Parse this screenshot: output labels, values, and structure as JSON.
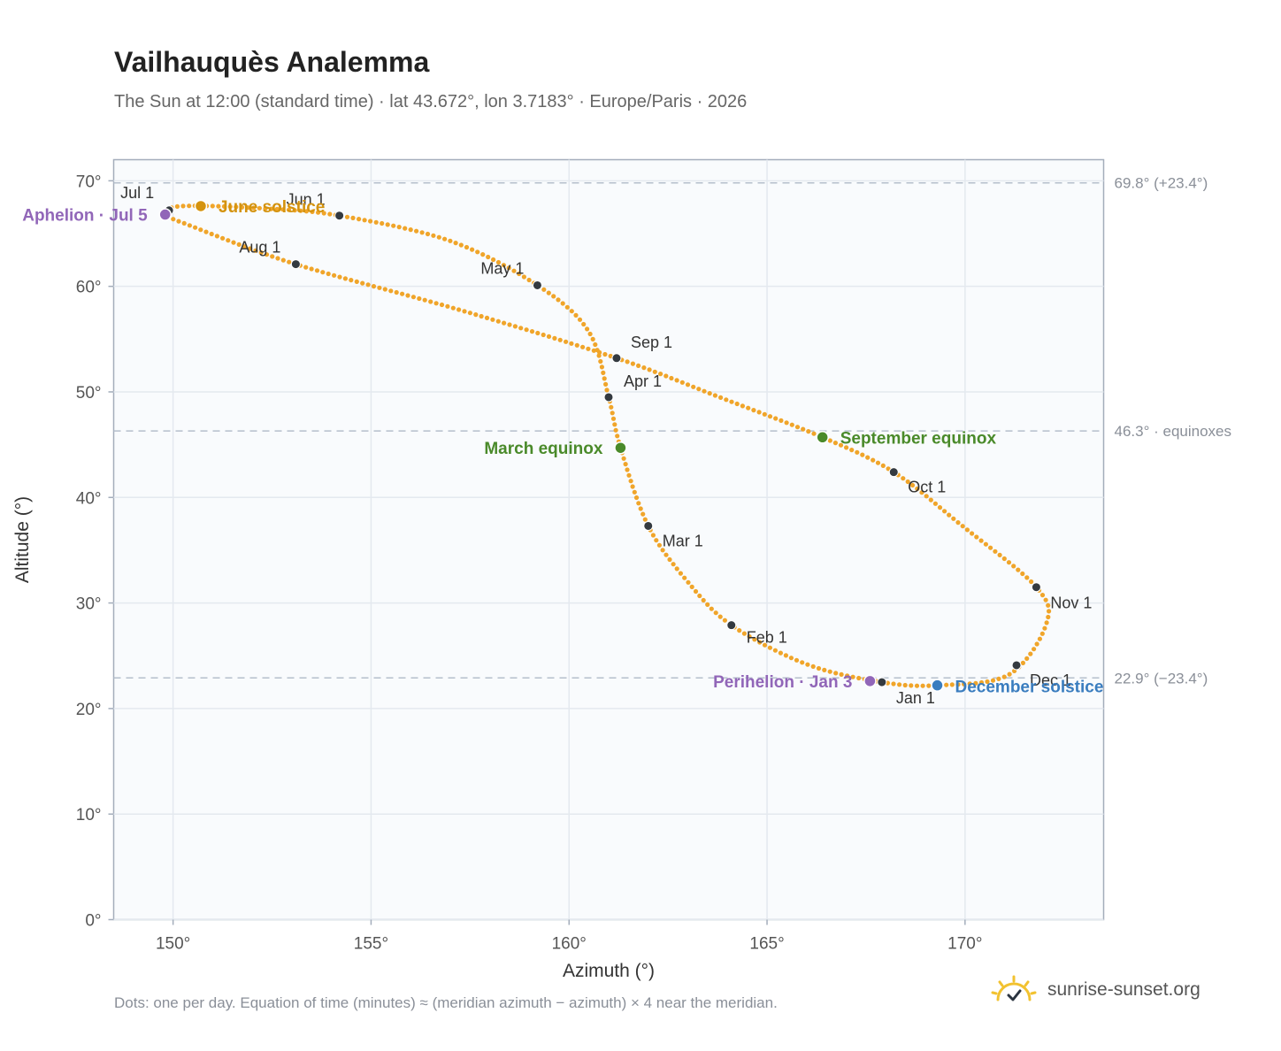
{
  "header": {
    "title": "Vailhauquès Analemma",
    "subtitle": "The Sun at 12:00 (standard time) · lat 43.672°, lon 3.7183° · Europe/Paris · 2026"
  },
  "footer": {
    "note": "Dots: one per day. Equation of time (minutes) ≈ (meridian azimuth − azimuth) × 4 near the meridian.",
    "brand": "sunrise-sunset.org",
    "brand_icon": "sun-check-icon"
  },
  "colors": {
    "curve": "#f0a52a",
    "month_marker": "#343a40",
    "solstice_june": "#d4930f",
    "solstice_december": "#3a7dbf",
    "equinox": "#4a8a2a",
    "apsis": "#9166b8",
    "reference_line": "#b5bfcc"
  },
  "chart_data": {
    "type": "scatter",
    "xlabel": "Azimuth (°)",
    "ylabel": "Altitude (°)",
    "xlim": [
      148.5,
      173.5
    ],
    "ylim": [
      0,
      72
    ],
    "x_ticks": [
      150,
      155,
      160,
      165,
      170
    ],
    "x_tick_labels": [
      "150°",
      "155°",
      "160°",
      "165°",
      "170°"
    ],
    "y_ticks": [
      0,
      10,
      20,
      30,
      40,
      50,
      60,
      70
    ],
    "y_tick_labels": [
      "0°",
      "10°",
      "20°",
      "30°",
      "40°",
      "50°",
      "60°",
      "70°"
    ],
    "grid": true,
    "reference_lines": [
      {
        "y": 69.8,
        "label": "69.8° (+23.4°)"
      },
      {
        "y": 46.3,
        "label": "46.3° · equinoxes"
      },
      {
        "y": 22.9,
        "label": "22.9° (−23.4°)"
      }
    ],
    "month_markers": [
      {
        "label": "Jan 1",
        "x": 167.9,
        "y": 22.5
      },
      {
        "label": "Feb 1",
        "x": 164.1,
        "y": 27.9
      },
      {
        "label": "Mar 1",
        "x": 162.0,
        "y": 37.3
      },
      {
        "label": "Apr 1",
        "x": 161.0,
        "y": 49.5
      },
      {
        "label": "May 1",
        "x": 159.2,
        "y": 60.1
      },
      {
        "label": "Jun 1",
        "x": 154.2,
        "y": 66.7
      },
      {
        "label": "Jul 1",
        "x": 149.9,
        "y": 67.2
      },
      {
        "label": "Aug 1",
        "x": 153.1,
        "y": 62.1
      },
      {
        "label": "Sep 1",
        "x": 161.2,
        "y": 53.2
      },
      {
        "label": "Oct 1",
        "x": 168.2,
        "y": 42.4
      },
      {
        "label": "Nov 1",
        "x": 171.8,
        "y": 31.5
      },
      {
        "label": "Dec 1",
        "x": 171.3,
        "y": 24.1
      }
    ],
    "events": [
      {
        "label": "June solstice",
        "x": 150.7,
        "y": 67.6,
        "kind": "solstice_june"
      },
      {
        "label": "December solstice",
        "x": 169.3,
        "y": 22.2,
        "kind": "solstice_december"
      },
      {
        "label": "March equinox",
        "x": 161.3,
        "y": 44.7,
        "kind": "equinox"
      },
      {
        "label": "September equinox",
        "x": 166.4,
        "y": 45.7,
        "kind": "equinox"
      },
      {
        "label": "Aphelion · Jul 5",
        "x": 149.8,
        "y": 66.8,
        "kind": "apsis"
      },
      {
        "label": "Perihelion · Jan 3",
        "x": 167.6,
        "y": 22.6,
        "kind": "apsis"
      }
    ],
    "curve_anchors": [
      [
        167.9,
        22.5
      ],
      [
        169.3,
        22.2
      ],
      [
        171.1,
        23.2
      ],
      [
        172.05,
        28.0
      ],
      [
        171.8,
        31.5
      ],
      [
        169.9,
        37.4
      ],
      [
        168.2,
        42.4
      ],
      [
        166.4,
        45.7
      ],
      [
        163.8,
        49.5
      ],
      [
        161.2,
        53.2
      ],
      [
        157.3,
        57.7
      ],
      [
        153.1,
        62.1
      ],
      [
        150.4,
        65.8
      ],
      [
        149.85,
        66.8
      ],
      [
        150.2,
        67.6
      ],
      [
        152.2,
        67.4
      ],
      [
        154.2,
        66.7
      ],
      [
        157.0,
        64.3
      ],
      [
        159.2,
        60.1
      ],
      [
        160.5,
        55.7
      ],
      [
        161.0,
        49.5
      ],
      [
        161.3,
        44.7
      ],
      [
        162.0,
        37.3
      ],
      [
        163.0,
        32.0
      ],
      [
        164.1,
        27.9
      ],
      [
        166.0,
        24.2
      ],
      [
        167.9,
        22.5
      ]
    ]
  }
}
